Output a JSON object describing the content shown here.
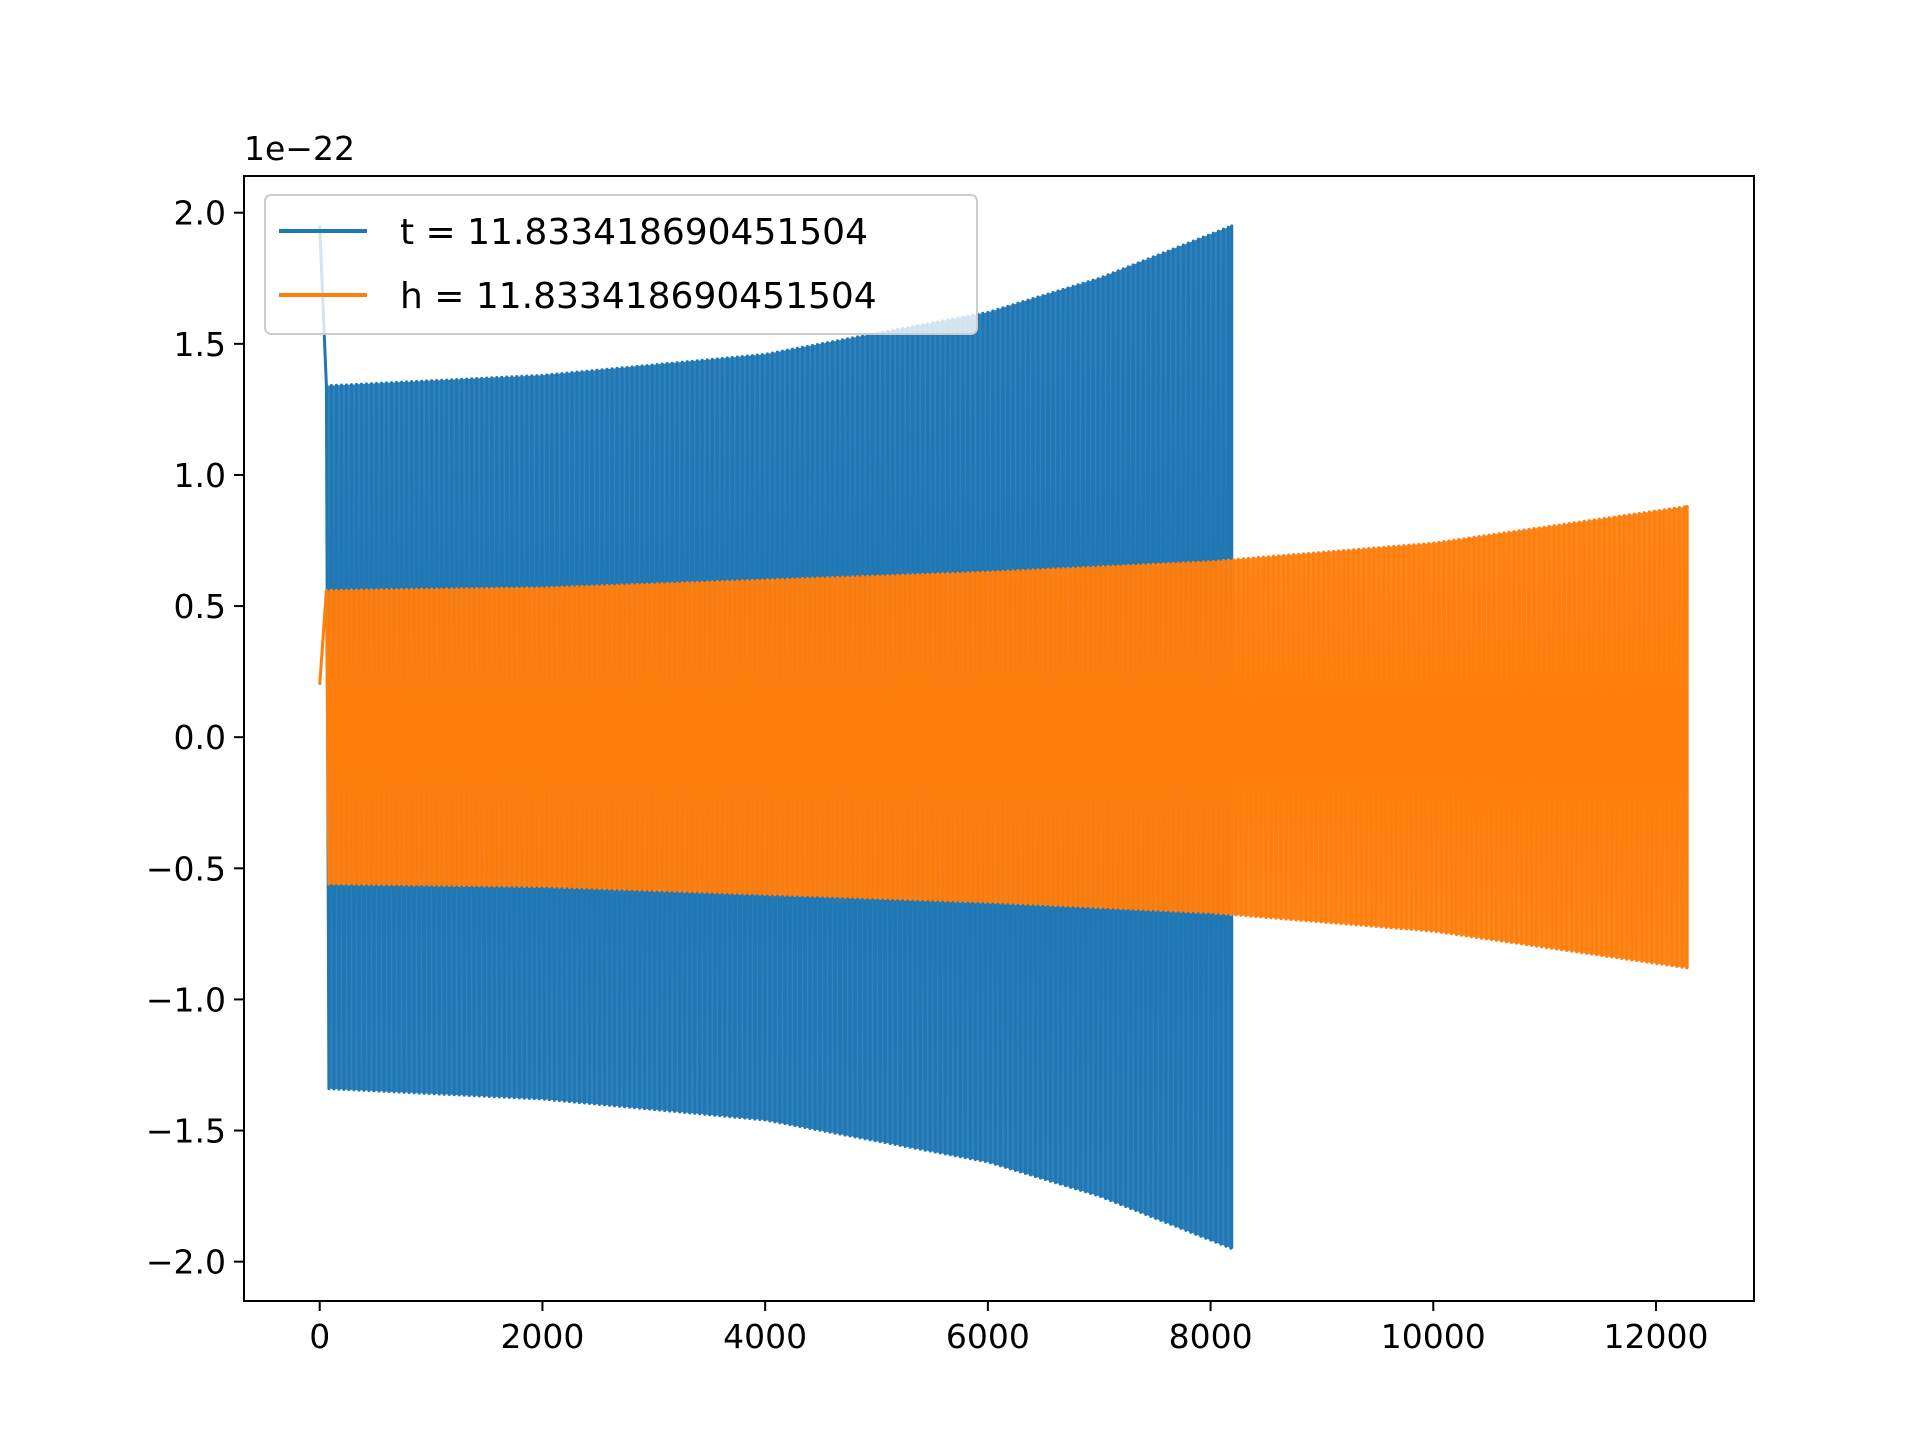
{
  "chart_data": {
    "type": "line",
    "title": "",
    "xlabel": "",
    "ylabel": "",
    "y_offset_label": "1e−22",
    "xlim": [
      -680,
      12880
    ],
    "ylim": [
      -2.15,
      2.14
    ],
    "x_ticks": [
      0,
      2000,
      4000,
      6000,
      8000,
      10000,
      12000
    ],
    "x_tick_labels": [
      "0",
      "2000",
      "4000",
      "6000",
      "8000",
      "10000",
      "12000"
    ],
    "y_ticks": [
      2.0,
      1.5,
      1.0,
      0.5,
      0.0,
      -0.5,
      -1.0,
      -1.5,
      -2.0
    ],
    "y_tick_labels": [
      "2.0",
      "1.5",
      "1.0",
      "0.5",
      "0.0",
      "−0.5",
      "−1.0",
      "−1.5",
      "−2.0"
    ],
    "grid": false,
    "legend": {
      "placement": "top-left"
    },
    "series": [
      {
        "name": "t = 11.833418690451504",
        "color": "#1f77b4",
        "style": "oscillating-envelope",
        "x_start": 0,
        "x_end": 8190,
        "initial_spike": 1.95,
        "envelope": {
          "x": [
            60,
            2000,
            4000,
            6000,
            7000,
            8190
          ],
          "upper": [
            1.34,
            1.38,
            1.46,
            1.62,
            1.75,
            1.95
          ],
          "lower": [
            -1.34,
            -1.38,
            -1.46,
            -1.62,
            -1.75,
            -1.95
          ]
        }
      },
      {
        "name": "h = 11.833418690451504",
        "color": "#ff7f0e",
        "style": "oscillating-envelope",
        "x_start": 0,
        "x_end": 12280,
        "initial_value": 0.2,
        "envelope": {
          "x": [
            60,
            2000,
            4000,
            6000,
            8000,
            10000,
            12280
          ],
          "upper": [
            0.56,
            0.57,
            0.6,
            0.63,
            0.67,
            0.74,
            0.88
          ],
          "lower": [
            -0.56,
            -0.57,
            -0.6,
            -0.63,
            -0.67,
            -0.74,
            -0.88
          ]
        }
      }
    ]
  }
}
